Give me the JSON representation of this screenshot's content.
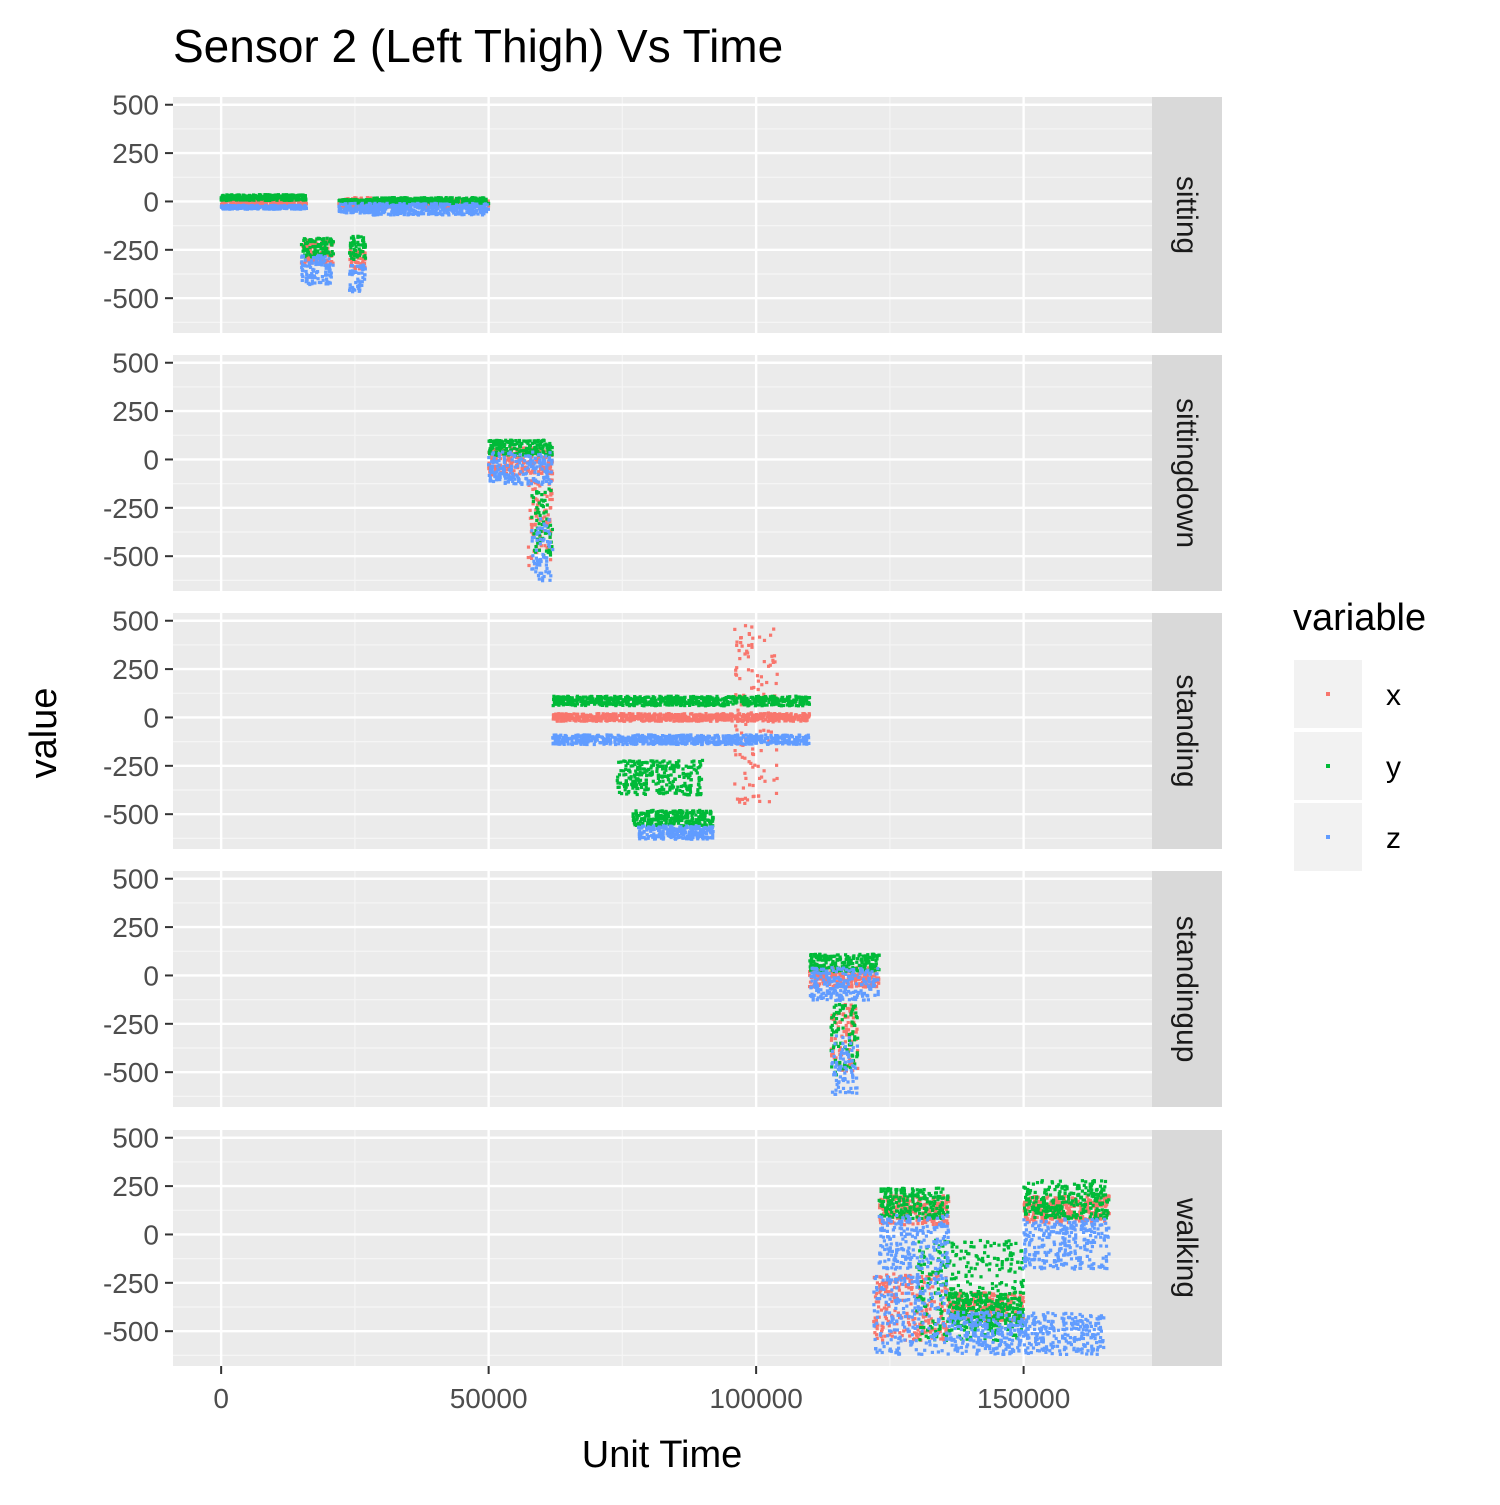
{
  "chart_data": {
    "type": "scatter",
    "title": "Sensor 2 (Left Thigh) Vs Time",
    "xlabel": "Unit Time",
    "ylabel": "value",
    "xlim": [
      -9000,
      174000
    ],
    "ylim": [
      -680,
      540
    ],
    "x_ticks": [
      0,
      50000,
      100000,
      150000
    ],
    "x_tick_labels": [
      "0",
      "50000",
      "100000",
      "150000"
    ],
    "y_ticks": [
      500,
      250,
      0,
      -250,
      -500
    ],
    "y_tick_labels": [
      "500",
      "250",
      "0",
      "-250",
      "-500"
    ],
    "grid": true,
    "legend": {
      "title": "variable",
      "placement": "right",
      "entries": [
        "x",
        "y",
        "z"
      ]
    },
    "colors": {
      "x": "#F8766D",
      "y": "#00BA38",
      "z": "#619CFF"
    },
    "facets": [
      {
        "label": "sitting",
        "series": [
          {
            "name": "x",
            "segments": [
              {
                "x": [
                  0,
                  16000
                ],
                "y": [
                  -30,
                  10
                ]
              },
              {
                "x": [
                  22000,
                  28000
                ],
                "y": [
                  -40,
                  20
                ]
              },
              {
                "x": [
                  28000,
                  50000
                ],
                "y": [
                  -30,
                  10
                ]
              },
              {
                "x": [
                  15000,
                  21000
                ],
                "y": [
                  -320,
                  -200
                ]
              },
              {
                "x": [
                  24000,
                  27000
                ],
                "y": [
                  -350,
                  -250
                ]
              }
            ]
          },
          {
            "name": "y",
            "segments": [
              {
                "x": [
                  0,
                  16000
                ],
                "y": [
                  5,
                  35
                ]
              },
              {
                "x": [
                  22000,
                  28000
                ],
                "y": [
                  -10,
                  10
                ]
              },
              {
                "x": [
                  28000,
                  50000
                ],
                "y": [
                  -15,
                  20
                ]
              },
              {
                "x": [
                  15000,
                  21000
                ],
                "y": [
                  -290,
                  -190
                ]
              },
              {
                "x": [
                  24000,
                  27000
                ],
                "y": [
                  -300,
                  -180
                ]
              }
            ]
          },
          {
            "name": "z",
            "segments": [
              {
                "x": [
                  0,
                  16000
                ],
                "y": [
                  -40,
                  -20
                ]
              },
              {
                "x": [
                  22000,
                  28000
                ],
                "y": [
                  -60,
                  -10
                ]
              },
              {
                "x": [
                  28000,
                  50000
                ],
                "y": [
                  -70,
                  -10
                ]
              },
              {
                "x": [
                  15000,
                  21000
                ],
                "y": [
                  -430,
                  -280
                ]
              },
              {
                "x": [
                  24000,
                  27000
                ],
                "y": [
                  -470,
                  -320
                ]
              }
            ]
          }
        ]
      },
      {
        "label": "sittingdown",
        "series": [
          {
            "name": "x",
            "segments": [
              {
                "x": [
                  50000,
                  62000
                ],
                "y": [
                  -80,
                  60
                ]
              },
              {
                "x": [
                  57000,
                  62000
                ],
                "y": [
                  -550,
                  -100
                ]
              }
            ]
          },
          {
            "name": "y",
            "segments": [
              {
                "x": [
                  50000,
                  62000
                ],
                "y": [
                  20,
                  100
                ]
              },
              {
                "x": [
                  58000,
                  62000
                ],
                "y": [
                  -500,
                  -150
                ]
              }
            ]
          },
          {
            "name": "z",
            "segments": [
              {
                "x": [
                  50000,
                  62000
                ],
                "y": [
                  -130,
                  40
                ]
              },
              {
                "x": [
                  58000,
                  62000
                ],
                "y": [
                  -630,
                  -300
                ]
              }
            ]
          }
        ]
      },
      {
        "label": "standing",
        "series": [
          {
            "name": "x",
            "segments": [
              {
                "x": [
                  62000,
                  110000
                ],
                "y": [
                  -20,
                  20
                ]
              },
              {
                "x": [
                  96000,
                  104000
                ],
                "y": [
                  -450,
                  480
                ]
              }
            ]
          },
          {
            "name": "y",
            "segments": [
              {
                "x": [
                  62000,
                  110000
                ],
                "y": [
                  60,
                  110
                ]
              },
              {
                "x": [
                  77000,
                  92000
                ],
                "y": [
                  -560,
                  -480
                ]
              },
              {
                "x": [
                  74000,
                  90000
                ],
                "y": [
                  -400,
                  -220
                ]
              }
            ]
          },
          {
            "name": "z",
            "segments": [
              {
                "x": [
                  62000,
                  110000
                ],
                "y": [
                  -140,
                  -90
                ]
              },
              {
                "x": [
                  78000,
                  92000
                ],
                "y": [
                  -630,
                  -560
                ]
              }
            ]
          }
        ]
      },
      {
        "label": "standingup",
        "series": [
          {
            "name": "x",
            "segments": [
              {
                "x": [
                  110000,
                  123000
                ],
                "y": [
                  -60,
                  40
                ]
              },
              {
                "x": [
                  114000,
                  119000
                ],
                "y": [
                  -500,
                  -150
                ]
              }
            ]
          },
          {
            "name": "y",
            "segments": [
              {
                "x": [
                  110000,
                  123000
                ],
                "y": [
                  20,
                  110
                ]
              },
              {
                "x": [
                  114000,
                  119000
                ],
                "y": [
                  -520,
                  -150
                ]
              }
            ]
          },
          {
            "name": "z",
            "segments": [
              {
                "x": [
                  110000,
                  123000
                ],
                "y": [
                  -130,
                  40
                ]
              },
              {
                "x": [
                  114000,
                  119000
                ],
                "y": [
                  -620,
                  -300
                ]
              }
            ]
          }
        ]
      },
      {
        "label": "walking",
        "series": [
          {
            "name": "x",
            "segments": [
              {
                "x": [
                  123000,
                  136000
                ],
                "y": [
                  50,
                  200
                ]
              },
              {
                "x": [
                  150000,
                  166000
                ],
                "y": [
                  60,
                  200
                ]
              },
              {
                "x": [
                  136000,
                  150000
                ],
                "y": [
                  -450,
                  -300
                ]
              },
              {
                "x": [
                  122000,
                  136000
                ],
                "y": [
                  -550,
                  -200
                ]
              }
            ]
          },
          {
            "name": "y",
            "segments": [
              {
                "x": [
                  123000,
                  136000
                ],
                "y": [
                  80,
                  240
                ]
              },
              {
                "x": [
                  150000,
                  166000
                ],
                "y": [
                  80,
                  280
                ]
              },
              {
                "x": [
                  136000,
                  150000
                ],
                "y": [
                  -500,
                  -300
                ]
              },
              {
                "x": [
                  130000,
                  150000
                ],
                "y": [
                  -550,
                  -30
                ]
              }
            ]
          },
          {
            "name": "z",
            "segments": [
              {
                "x": [
                  123000,
                  136000
                ],
                "y": [
                  -180,
                  100
                ]
              },
              {
                "x": [
                  150000,
                  166000
                ],
                "y": [
                  -180,
                  80
                ]
              },
              {
                "x": [
                  136000,
                  165000
                ],
                "y": [
                  -620,
                  -400
                ]
              },
              {
                "x": [
                  122000,
                  136000
                ],
                "y": [
                  -620,
                  -200
                ]
              }
            ]
          }
        ]
      }
    ]
  }
}
